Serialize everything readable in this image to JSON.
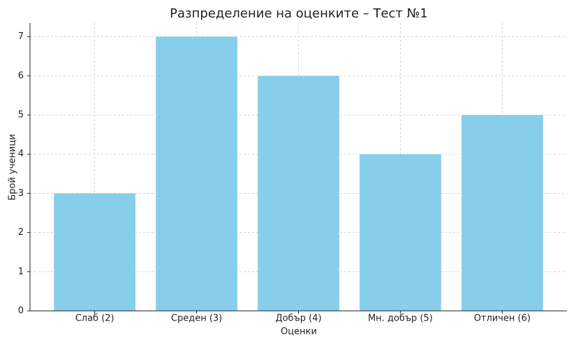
{
  "chart_data": {
    "type": "bar",
    "title": "Разпределение на оценките – Тест №1",
    "x_label": "Оценки",
    "y_label": "Брой ученици",
    "categories": [
      "Слаб (2)",
      "Среден (3)",
      "Добър (4)",
      "Мн. добър (5)",
      "Отличен (6)"
    ],
    "values": [
      3,
      7,
      6,
      4,
      5
    ],
    "color": "#87ceeb",
    "ylim": [
      0,
      7.35
    ],
    "yticks": [
      0,
      1,
      2,
      3,
      4,
      5,
      6,
      7
    ],
    "grid": true
  }
}
